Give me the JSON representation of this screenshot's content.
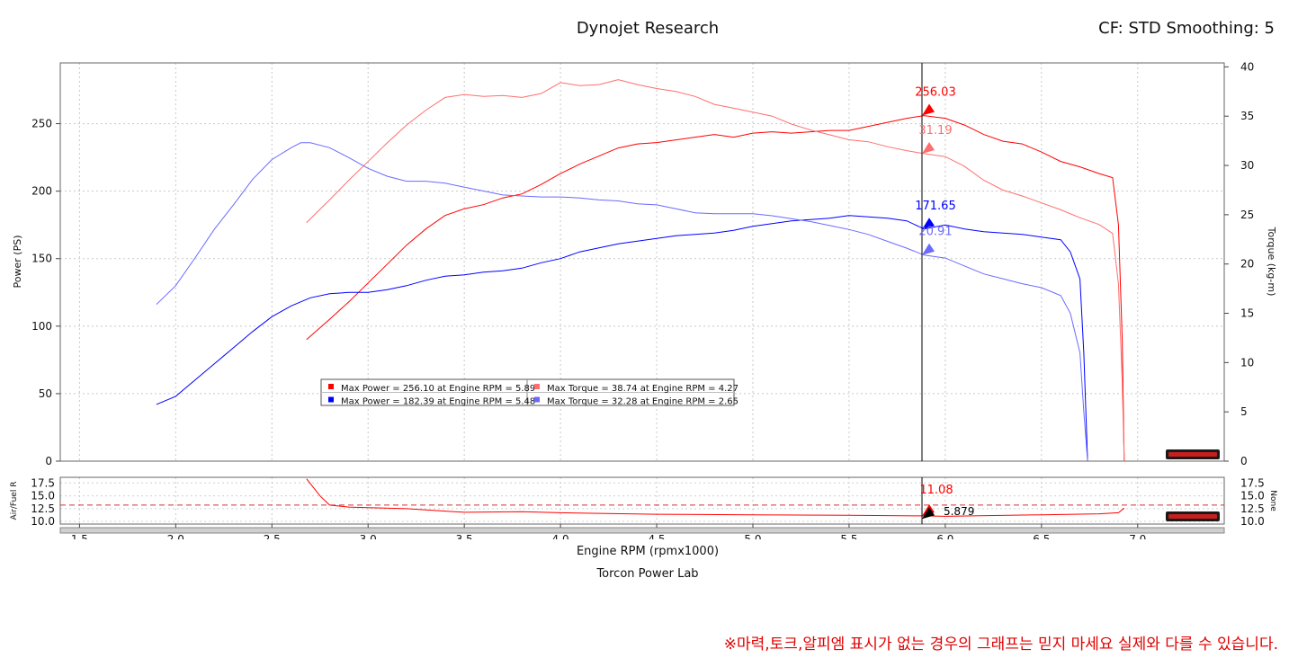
{
  "header": {
    "title": "Dynojet Research",
    "settings": "CF: STD Smoothing: 5"
  },
  "footer": {
    "lab": "Torcon Power Lab",
    "notice": "※마력,토크,알피엠 표시가 없는 경우의 그래프는 믿지 마세요 실제와 다를 수 있습니다."
  },
  "colors": {
    "run1_power": "#ff0000",
    "run1_torque": "#ff6e6e",
    "run2_power": "#0000ff",
    "run2_torque": "#6a6aff",
    "cursor": "#000000"
  },
  "chart_data": {
    "type": "line",
    "xlabel": "Engine RPM (rpmx1000)",
    "ylabel_left": "Power (PS)",
    "ylabel_right": "Torque (kg-m)",
    "xlim": [
      1.4,
      7.45
    ],
    "ylim_left": [
      0,
      295
    ],
    "ylim_right": [
      0,
      40.4
    ],
    "x_ticks": [
      "1.5",
      "2.0",
      "2.5",
      "3.0",
      "3.5",
      "4.0",
      "4.5",
      "5.0",
      "5.5",
      "6.0",
      "6.5",
      "7.0"
    ],
    "y_ticks_left": [
      "0",
      "50",
      "100",
      "150",
      "200",
      "250"
    ],
    "y_ticks_right": [
      "0",
      "5",
      "10",
      "15",
      "20",
      "25",
      "30",
      "35",
      "40"
    ],
    "grid": true,
    "legend_placement": "center-left",
    "series": [
      {
        "name": "Max Power = 256.10 at Engine RPM = 5.89",
        "axis": "left",
        "color": "#ff0000",
        "x": [
          2.68,
          2.8,
          2.9,
          3.0,
          3.1,
          3.2,
          3.3,
          3.4,
          3.5,
          3.6,
          3.7,
          3.8,
          3.9,
          4.0,
          4.1,
          4.2,
          4.3,
          4.4,
          4.5,
          4.6,
          4.7,
          4.8,
          4.9,
          5.0,
          5.1,
          5.2,
          5.3,
          5.4,
          5.5,
          5.6,
          5.7,
          5.8,
          5.89,
          6.0,
          6.1,
          6.2,
          6.3,
          6.4,
          6.5,
          6.6,
          6.7,
          6.8,
          6.87,
          6.9,
          6.92,
          6.93
        ],
        "y": [
          90,
          105,
          118,
          132,
          146,
          160,
          172,
          182,
          187,
          190,
          195,
          198,
          205,
          213,
          220,
          226,
          232,
          235,
          236,
          238,
          240,
          242,
          240,
          243,
          244,
          243,
          244,
          245,
          245,
          248,
          251,
          254,
          256,
          254,
          249,
          242,
          237,
          235,
          229,
          222,
          218,
          213,
          210,
          175,
          90,
          0
        ]
      },
      {
        "name": "Max Torque = 38.74 at Engine RPM = 4.27",
        "axis": "right",
        "color": "#ff6e6e",
        "x": [
          2.68,
          2.8,
          2.9,
          3.0,
          3.1,
          3.2,
          3.3,
          3.4,
          3.5,
          3.6,
          3.7,
          3.8,
          3.9,
          4.0,
          4.1,
          4.2,
          4.3,
          4.4,
          4.5,
          4.6,
          4.7,
          4.8,
          4.9,
          5.0,
          5.1,
          5.2,
          5.3,
          5.4,
          5.5,
          5.6,
          5.7,
          5.8,
          5.89,
          6.0,
          6.1,
          6.2,
          6.3,
          6.4,
          6.5,
          6.6,
          6.7,
          6.8,
          6.87,
          6.9,
          6.92,
          6.93
        ],
        "y": [
          24.2,
          26.5,
          28.5,
          30.4,
          32.3,
          34.1,
          35.6,
          36.9,
          37.2,
          37.0,
          37.1,
          36.9,
          37.3,
          38.4,
          38.1,
          38.2,
          38.7,
          38.2,
          37.8,
          37.5,
          37.0,
          36.2,
          35.8,
          35.4,
          35.0,
          34.2,
          33.6,
          33.1,
          32.6,
          32.4,
          31.9,
          31.5,
          31.2,
          30.9,
          29.9,
          28.5,
          27.5,
          26.9,
          26.2,
          25.5,
          24.7,
          24.0,
          23.1,
          18.0,
          8.0,
          0
        ]
      },
      {
        "name": "Max Power = 182.39 at Engine RPM = 5.48",
        "axis": "left",
        "color": "#0000ff",
        "x": [
          1.9,
          2.0,
          2.1,
          2.2,
          2.3,
          2.4,
          2.5,
          2.6,
          2.7,
          2.8,
          2.9,
          3.0,
          3.1,
          3.2,
          3.3,
          3.4,
          3.5,
          3.6,
          3.7,
          3.8,
          3.9,
          4.0,
          4.1,
          4.2,
          4.3,
          4.4,
          4.5,
          4.6,
          4.7,
          4.8,
          4.9,
          5.0,
          5.1,
          5.2,
          5.3,
          5.4,
          5.5,
          5.6,
          5.7,
          5.8,
          5.89,
          6.0,
          6.1,
          6.2,
          6.3,
          6.4,
          6.5,
          6.6,
          6.65,
          6.7,
          6.72,
          6.74
        ],
        "y": [
          42,
          48,
          60,
          72,
          84,
          96,
          107,
          115,
          121,
          124,
          125,
          125,
          127,
          130,
          134,
          137,
          138,
          140,
          141,
          143,
          147,
          150,
          155,
          158,
          161,
          163,
          165,
          167,
          168,
          169,
          171,
          174,
          176,
          178,
          179,
          180,
          182,
          181,
          180,
          178,
          172,
          175,
          172,
          170,
          169,
          168,
          166,
          164,
          155,
          135,
          80,
          0
        ]
      },
      {
        "name": "Max Torque = 32.28 at Engine RPM = 2.65",
        "axis": "right",
        "color": "#6a6aff",
        "x": [
          1.9,
          2.0,
          2.1,
          2.2,
          2.3,
          2.4,
          2.5,
          2.6,
          2.65,
          2.7,
          2.8,
          2.9,
          3.0,
          3.1,
          3.2,
          3.3,
          3.4,
          3.5,
          3.6,
          3.7,
          3.8,
          3.9,
          4.0,
          4.1,
          4.2,
          4.3,
          4.4,
          4.5,
          4.6,
          4.7,
          4.8,
          4.9,
          5.0,
          5.1,
          5.2,
          5.3,
          5.4,
          5.5,
          5.6,
          5.7,
          5.8,
          5.89,
          6.0,
          6.1,
          6.2,
          6.3,
          6.4,
          6.5,
          6.6,
          6.65,
          6.7,
          6.72,
          6.74
        ],
        "y": [
          15.9,
          17.8,
          20.6,
          23.5,
          26.0,
          28.6,
          30.6,
          31.8,
          32.3,
          32.3,
          31.8,
          30.8,
          29.7,
          28.9,
          28.4,
          28.4,
          28.2,
          27.8,
          27.4,
          27.0,
          26.9,
          26.8,
          26.8,
          26.7,
          26.5,
          26.4,
          26.1,
          26.0,
          25.6,
          25.2,
          25.1,
          25.1,
          25.1,
          24.9,
          24.6,
          24.3,
          23.9,
          23.5,
          23.0,
          22.3,
          21.6,
          20.9,
          20.6,
          19.8,
          19.0,
          18.5,
          18.0,
          17.6,
          16.8,
          15.0,
          11.0,
          5.0,
          0
        ]
      }
    ],
    "legend": [
      {
        "label": "Max Power = 256.10 at Engine RPM = 5.89",
        "color": "#ff0000"
      },
      {
        "label": "Max Torque = 38.74 at Engine RPM = 4.27",
        "color": "#ff6e6e"
      },
      {
        "label": "Max Power = 182.39 at Engine RPM = 5.48",
        "color": "#0000ff"
      },
      {
        "label": "Max Torque = 32.28 at Engine RPM = 2.65",
        "color": "#6a6aff"
      }
    ],
    "cursor": {
      "x": 5.879,
      "x_label": "5.879",
      "readouts": [
        {
          "label": "256.03",
          "value": 256.03,
          "axis": "left",
          "color": "#ff0000"
        },
        {
          "label": "31.19",
          "value": 31.19,
          "axis": "right",
          "color": "#ff6e6e"
        },
        {
          "label": "171.65",
          "value": 171.65,
          "axis": "left",
          "color": "#0000ff"
        },
        {
          "label": "20.91",
          "value": 20.91,
          "axis": "right",
          "color": "#6a6aff"
        }
      ]
    },
    "afr_panel": {
      "ylabel_left": "Air/Fuel R",
      "ylabel_right": "None",
      "ylim": [
        9.5,
        18.6
      ],
      "y_ticks": [
        "10.0",
        "12.5",
        "15.0",
        "17.5"
      ],
      "target": 13.2,
      "series": {
        "color": "#ff0000",
        "x": [
          2.68,
          2.75,
          2.8,
          2.9,
          3.0,
          3.2,
          3.5,
          3.8,
          4.0,
          4.5,
          5.0,
          5.5,
          5.89,
          6.0,
          6.5,
          6.8,
          6.9,
          6.93
        ],
        "y": [
          18.3,
          15.0,
          13.2,
          12.8,
          12.7,
          12.5,
          11.8,
          11.9,
          11.7,
          11.4,
          11.3,
          11.2,
          11.1,
          11.0,
          11.3,
          11.5,
          11.7,
          12.6
        ]
      },
      "cursor_readouts": [
        {
          "label": "11.08",
          "value": 11.08,
          "color": "#ff0000"
        },
        {
          "label": "5.879",
          "value": 10.5,
          "color": "#000000"
        }
      ]
    }
  }
}
